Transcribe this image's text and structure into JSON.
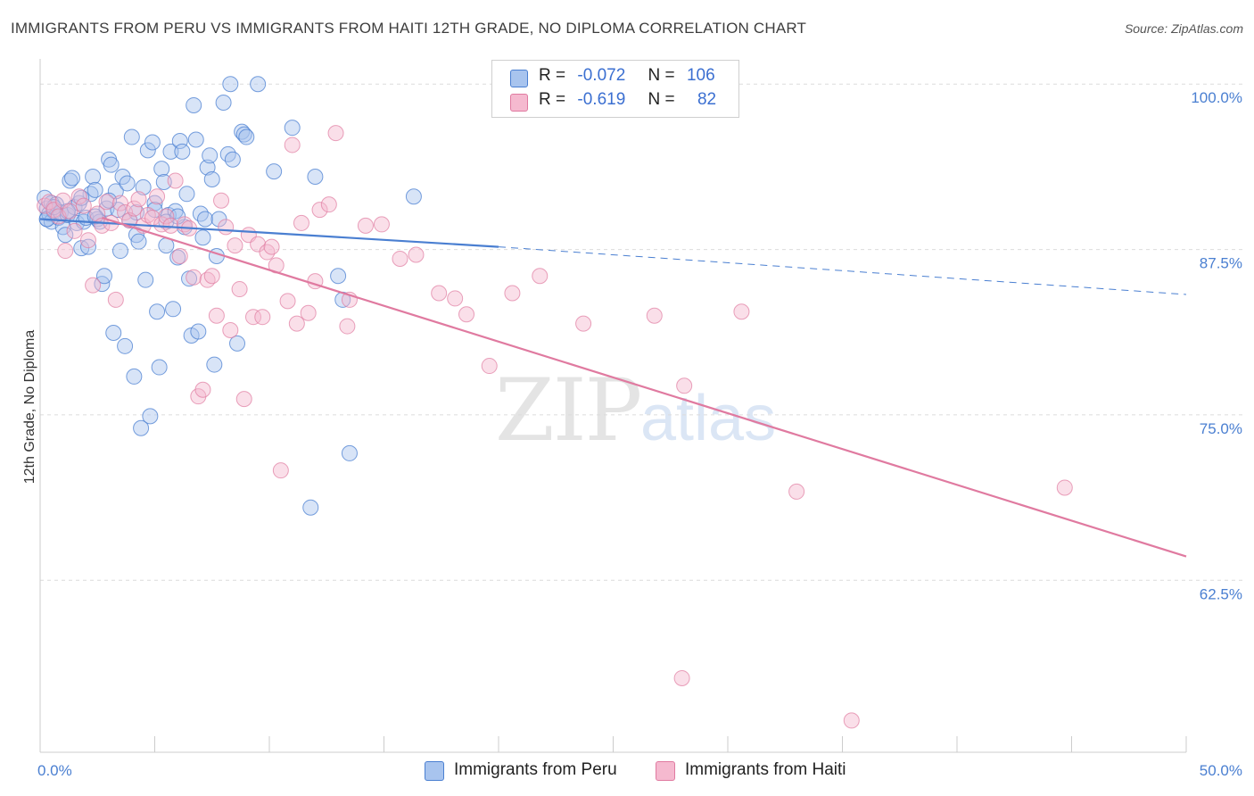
{
  "title": "IMMIGRANTS FROM PERU VS IMMIGRANTS FROM HAITI 12TH GRADE, NO DIPLOMA CORRELATION CHART",
  "source": "Source: ZipAtlas.com",
  "watermark": {
    "zip": "ZIP",
    "atlas": "atlas"
  },
  "colors": {
    "peru": "#4a7fd1",
    "peru_fill": "#a8c4ee",
    "haiti": "#e07aa0",
    "haiti_fill": "#f5b9cf",
    "grid": "#dcdcdc",
    "tick": "#4a7fd1"
  },
  "legend": {
    "peru": {
      "r_label": "R =",
      "r_value": "-0.072",
      "n_label": "N =",
      "n_value": "106"
    },
    "haiti": {
      "r_label": "R =",
      "r_value": "-0.619",
      "n_label": "N =",
      "n_value": "82"
    }
  },
  "bottom_legend": {
    "peru": "Immigrants from Peru",
    "haiti": "Immigrants from Haiti"
  },
  "chart_data": {
    "type": "scatter",
    "title": "IMMIGRANTS FROM PERU VS IMMIGRANTS FROM HAITI 12TH GRADE, NO DIPLOMA CORRELATION CHART",
    "xlabel": "",
    "ylabel": "12th Grade, No Diploma",
    "xlim": [
      0,
      50
    ],
    "ylim": [
      49.5,
      101.5
    ],
    "x_tick_labels": [
      "0.0%",
      "50.0%"
    ],
    "y_ticks": [
      100,
      87.5,
      75,
      62.5
    ],
    "y_tick_labels": [
      "100.0%",
      "87.5%",
      "75.0%",
      "62.5%"
    ],
    "series": [
      {
        "name": "Immigrants from Peru",
        "r": -0.072,
        "n": 106,
        "trend": {
          "x_solid": [
            0,
            20
          ],
          "y_solid": [
            89.8,
            87.7
          ],
          "x_dashed": [
            20,
            50
          ],
          "y_dashed": [
            87.7,
            84.1
          ]
        },
        "points": [
          [
            0.2,
            91.4
          ],
          [
            0.3,
            90.6
          ],
          [
            0.3,
            89.8
          ],
          [
            0.4,
            90.2
          ],
          [
            0.5,
            91.0
          ],
          [
            0.5,
            89.6
          ],
          [
            0.6,
            90.4
          ],
          [
            0.7,
            90.9
          ],
          [
            0.8,
            89.9
          ],
          [
            0.9,
            90.3
          ],
          [
            1.0,
            89.2
          ],
          [
            1.1,
            88.6
          ],
          [
            1.2,
            90.1
          ],
          [
            1.3,
            92.7
          ],
          [
            1.4,
            92.9
          ],
          [
            1.5,
            90.7
          ],
          [
            1.6,
            89.5
          ],
          [
            1.7,
            91.0
          ],
          [
            1.8,
            87.6
          ],
          [
            1.9,
            89.6
          ],
          [
            2.0,
            89.9
          ],
          [
            2.1,
            87.7
          ],
          [
            2.2,
            91.7
          ],
          [
            2.3,
            93.0
          ],
          [
            2.4,
            92.0
          ],
          [
            2.5,
            89.8
          ],
          [
            2.6,
            89.6
          ],
          [
            2.7,
            84.9
          ],
          [
            2.8,
            85.5
          ],
          [
            2.9,
            90.6
          ],
          [
            3.0,
            94.3
          ],
          [
            3.1,
            93.9
          ],
          [
            3.2,
            81.2
          ],
          [
            3.3,
            91.9
          ],
          [
            3.4,
            90.5
          ],
          [
            3.5,
            87.4
          ],
          [
            3.6,
            93.0
          ],
          [
            3.7,
            80.2
          ],
          [
            3.8,
            92.5
          ],
          [
            3.9,
            89.7
          ],
          [
            4.0,
            96.0
          ],
          [
            4.1,
            77.9
          ],
          [
            4.2,
            88.6
          ],
          [
            4.3,
            88.1
          ],
          [
            4.4,
            74.0
          ],
          [
            4.5,
            92.2
          ],
          [
            4.6,
            85.2
          ],
          [
            4.7,
            95.0
          ],
          [
            4.8,
            74.9
          ],
          [
            4.9,
            95.6
          ],
          [
            5.0,
            91.0
          ],
          [
            5.1,
            82.8
          ],
          [
            5.2,
            78.6
          ],
          [
            5.3,
            93.6
          ],
          [
            5.4,
            92.6
          ],
          [
            5.5,
            87.8
          ],
          [
            5.6,
            90.1
          ],
          [
            5.7,
            94.9
          ],
          [
            5.8,
            83.0
          ],
          [
            5.9,
            90.4
          ],
          [
            6.0,
            86.9
          ],
          [
            6.1,
            95.7
          ],
          [
            6.2,
            94.9
          ],
          [
            6.3,
            89.2
          ],
          [
            6.4,
            91.7
          ],
          [
            6.5,
            85.3
          ],
          [
            6.6,
            81.0
          ],
          [
            6.7,
            98.4
          ],
          [
            6.8,
            95.8
          ],
          [
            6.9,
            81.3
          ],
          [
            7.0,
            90.2
          ],
          [
            7.1,
            88.4
          ],
          [
            7.2,
            89.8
          ],
          [
            7.3,
            93.7
          ],
          [
            7.4,
            94.6
          ],
          [
            7.5,
            92.8
          ],
          [
            7.6,
            78.8
          ],
          [
            7.7,
            87.0
          ],
          [
            7.8,
            89.8
          ],
          [
            8.0,
            98.6
          ],
          [
            8.2,
            94.7
          ],
          [
            8.3,
            100.0
          ],
          [
            8.4,
            94.3
          ],
          [
            8.6,
            80.4
          ],
          [
            8.8,
            96.4
          ],
          [
            8.9,
            96.2
          ],
          [
            9.0,
            96.0
          ],
          [
            9.5,
            100.0
          ],
          [
            10.2,
            93.4
          ],
          [
            11.0,
            96.7
          ],
          [
            11.8,
            68.0
          ],
          [
            12.0,
            93.0
          ],
          [
            13.0,
            85.5
          ],
          [
            13.2,
            83.7
          ],
          [
            13.5,
            72.1
          ],
          [
            16.3,
            91.5
          ],
          [
            0.3,
            89.8
          ],
          [
            0.6,
            90.7
          ],
          [
            1.2,
            90.4
          ],
          [
            1.8,
            91.4
          ],
          [
            2.4,
            90.0
          ],
          [
            3.0,
            91.2
          ],
          [
            4.2,
            90.3
          ],
          [
            5.0,
            90.5
          ],
          [
            5.5,
            89.6
          ],
          [
            6.0,
            90.0
          ]
        ]
      },
      {
        "name": "Immigrants from Haiti",
        "r": -0.619,
        "n": 82,
        "trend": {
          "x": [
            2.7,
            50
          ],
          "y": [
            89.9,
            64.3
          ]
        },
        "points": [
          [
            0.2,
            90.8
          ],
          [
            0.4,
            91.1
          ],
          [
            0.6,
            90.5
          ],
          [
            0.8,
            90.0
          ],
          [
            1.0,
            91.2
          ],
          [
            1.1,
            87.4
          ],
          [
            1.3,
            90.4
          ],
          [
            1.5,
            88.9
          ],
          [
            1.7,
            91.5
          ],
          [
            1.9,
            90.8
          ],
          [
            2.1,
            88.2
          ],
          [
            2.3,
            84.8
          ],
          [
            2.5,
            90.2
          ],
          [
            2.7,
            89.3
          ],
          [
            2.9,
            91.1
          ],
          [
            3.1,
            89.5
          ],
          [
            3.3,
            83.7
          ],
          [
            3.5,
            91.0
          ],
          [
            3.7,
            90.3
          ],
          [
            3.9,
            89.7
          ],
          [
            4.1,
            90.6
          ],
          [
            4.3,
            91.3
          ],
          [
            4.5,
            89.3
          ],
          [
            4.7,
            90.1
          ],
          [
            4.9,
            89.9
          ],
          [
            5.1,
            91.5
          ],
          [
            5.3,
            89.4
          ],
          [
            5.5,
            90.0
          ],
          [
            5.7,
            89.3
          ],
          [
            5.9,
            92.7
          ],
          [
            6.1,
            87.0
          ],
          [
            6.3,
            89.4
          ],
          [
            6.5,
            89.1
          ],
          [
            6.7,
            85.4
          ],
          [
            6.9,
            76.4
          ],
          [
            7.1,
            76.9
          ],
          [
            7.3,
            85.2
          ],
          [
            7.5,
            85.5
          ],
          [
            7.7,
            82.5
          ],
          [
            7.9,
            91.2
          ],
          [
            8.1,
            89.2
          ],
          [
            8.3,
            81.4
          ],
          [
            8.5,
            87.8
          ],
          [
            8.7,
            84.5
          ],
          [
            8.9,
            76.2
          ],
          [
            9.1,
            88.6
          ],
          [
            9.3,
            82.4
          ],
          [
            9.5,
            87.9
          ],
          [
            9.7,
            82.4
          ],
          [
            9.9,
            87.3
          ],
          [
            10.1,
            87.7
          ],
          [
            10.3,
            86.3
          ],
          [
            10.5,
            70.8
          ],
          [
            10.8,
            83.6
          ],
          [
            11.0,
            95.4
          ],
          [
            11.2,
            81.9
          ],
          [
            11.4,
            89.5
          ],
          [
            11.7,
            82.7
          ],
          [
            12.0,
            85.1
          ],
          [
            12.2,
            90.5
          ],
          [
            12.6,
            90.9
          ],
          [
            12.9,
            96.3
          ],
          [
            13.4,
            81.7
          ],
          [
            13.5,
            83.7
          ],
          [
            14.2,
            89.3
          ],
          [
            14.9,
            89.4
          ],
          [
            15.7,
            86.8
          ],
          [
            16.4,
            87.1
          ],
          [
            17.4,
            84.2
          ],
          [
            18.1,
            83.8
          ],
          [
            18.6,
            82.6
          ],
          [
            19.6,
            78.7
          ],
          [
            20.6,
            84.2
          ],
          [
            21.8,
            85.5
          ],
          [
            23.7,
            81.9
          ],
          [
            26.8,
            82.5
          ],
          [
            28.1,
            77.2
          ],
          [
            28.0,
            55.1
          ],
          [
            30.6,
            82.8
          ],
          [
            33.0,
            69.2
          ],
          [
            35.4,
            51.9
          ],
          [
            44.7,
            69.5
          ]
        ]
      }
    ]
  }
}
